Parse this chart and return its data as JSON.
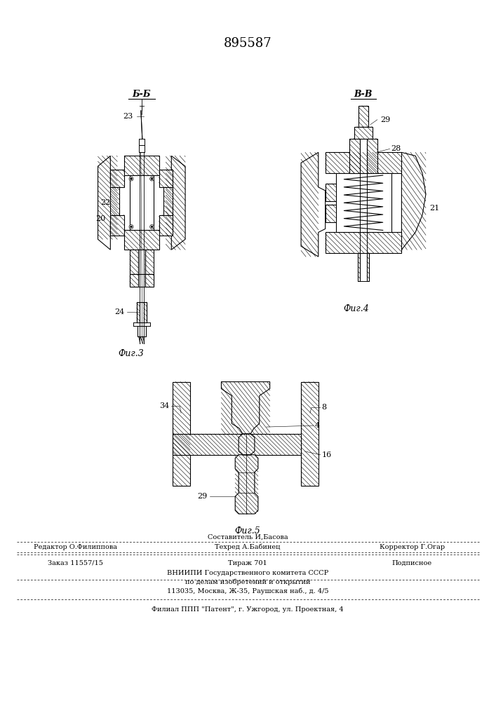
{
  "patent_number": "895587",
  "background_color": "#ffffff",
  "fig_width": 7.07,
  "fig_height": 10.0,
  "dpi": 100,
  "section_b_label": "Б-Б",
  "section_v_label": "В-В",
  "fig3_label": "Фиг.3",
  "fig4_label": "Фиг.4",
  "fig5_label": "Фиг.5",
  "editor_label": "Редактор О.Филиппова",
  "compiler_label": "Составитель И,Басова",
  "techred_label": "Техред А.Бабинец",
  "corrector_label": "Корректор Г.Огар",
  "order_label": "Заказ 11557/15",
  "tirazh_label": "Тираж 701",
  "podpisnoe_label": "Подписное",
  "vniimpi_line1": "ВНИИПИ Государственного комитета СССР",
  "vniimpi_line2": "по делам изобретений и открытий",
  "vniimpi_line3": "113035, Москва, Ж-35, Раушская наб., д. 4/5",
  "filial_label": "Филиал ППП \"Патент\", г. Ужгород, ул. Проектная, 4",
  "small_fontsize": 7
}
